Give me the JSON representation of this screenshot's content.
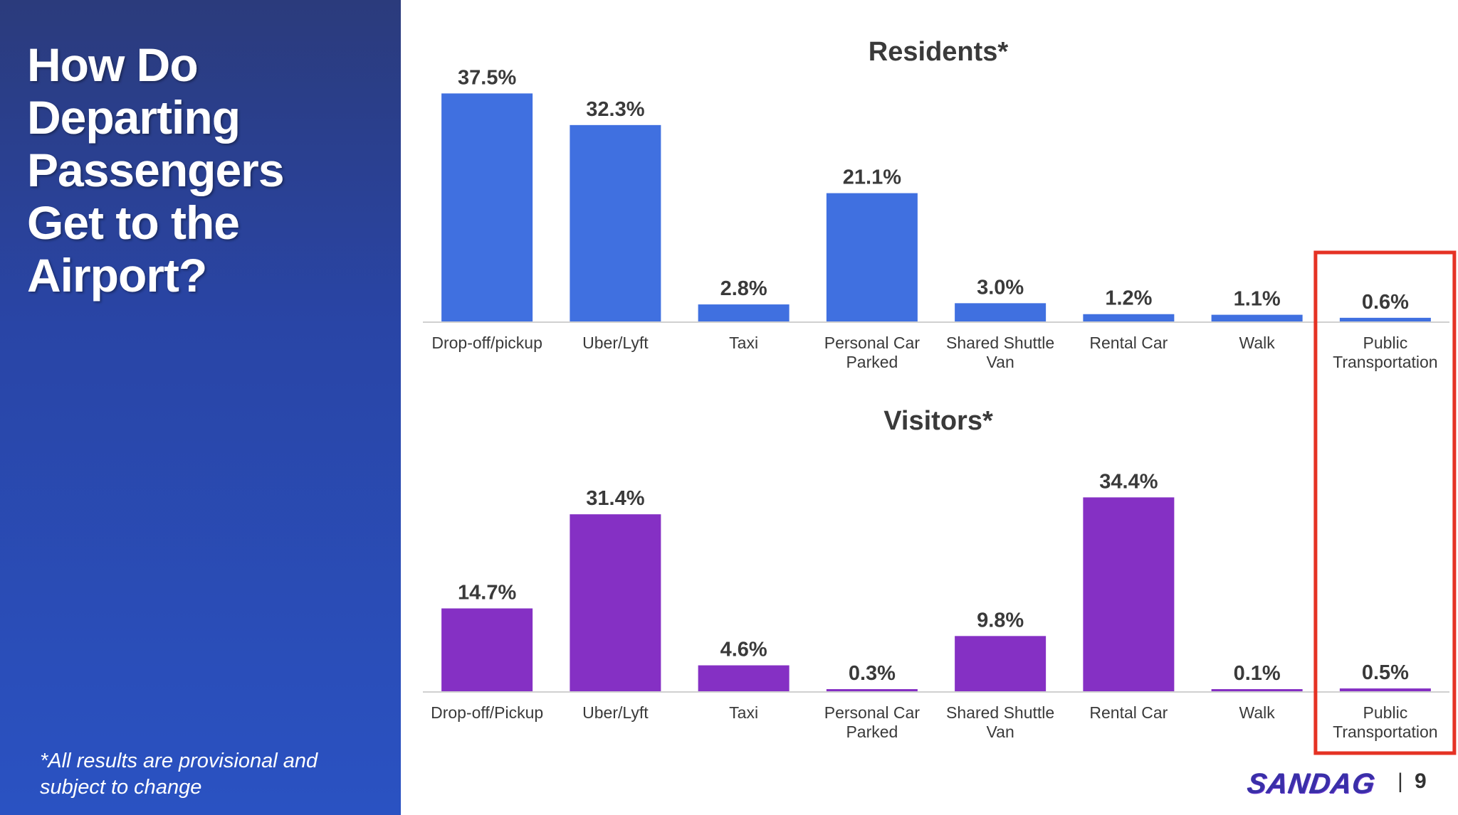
{
  "slide": {
    "title": "How Do\nDeparting\nPassengers\nGet to the\nAirport?",
    "footnote": "*All results are provisional and\nsubject to change",
    "logo": "SANDAG",
    "page_separator": "|",
    "page_number": "9"
  },
  "colors": {
    "sidebar_top": "#2b3b7c",
    "sidebar_bottom": "#2a52c2",
    "residents_bar": "#4070e0",
    "visitors_bar": "#8530c4",
    "highlight": "#e53224",
    "text_dark": "#3a3a3a"
  },
  "highlighted_category": "Public Transportation",
  "chart_data": [
    {
      "type": "bar",
      "title": "Residents*",
      "categories": [
        "Drop-off/pickup",
        "Uber/Lyft",
        "Taxi",
        "Personal Car Parked",
        "Shared Shuttle Van",
        "Rental Car",
        "Walk",
        "Public Transportation"
      ],
      "values": [
        37.5,
        32.3,
        2.8,
        21.1,
        3.0,
        1.2,
        1.1,
        0.6
      ],
      "value_labels": [
        "37.5%",
        "32.3%",
        "2.8%",
        "21.1%",
        "3.0%",
        "1.2%",
        "1.1%",
        "0.6%"
      ],
      "unit": "%",
      "xlabel": "",
      "ylabel": "",
      "ylim": [
        0,
        40
      ],
      "grid": false
    },
    {
      "type": "bar",
      "title": "Visitors*",
      "categories": [
        "Drop-off/Pickup",
        "Uber/Lyft",
        "Taxi",
        "Personal Car Parked",
        "Shared Shuttle Van",
        "Rental Car",
        "Walk",
        "Public Transportation"
      ],
      "values": [
        14.7,
        31.4,
        4.6,
        0.3,
        9.8,
        34.4,
        0.1,
        0.5
      ],
      "value_labels": [
        "14.7%",
        "31.4%",
        "4.6%",
        "0.3%",
        "9.8%",
        "34.4%",
        "0.1%",
        "0.5%"
      ],
      "unit": "%",
      "xlabel": "",
      "ylabel": "",
      "ylim": [
        0,
        40
      ],
      "grid": false
    }
  ]
}
